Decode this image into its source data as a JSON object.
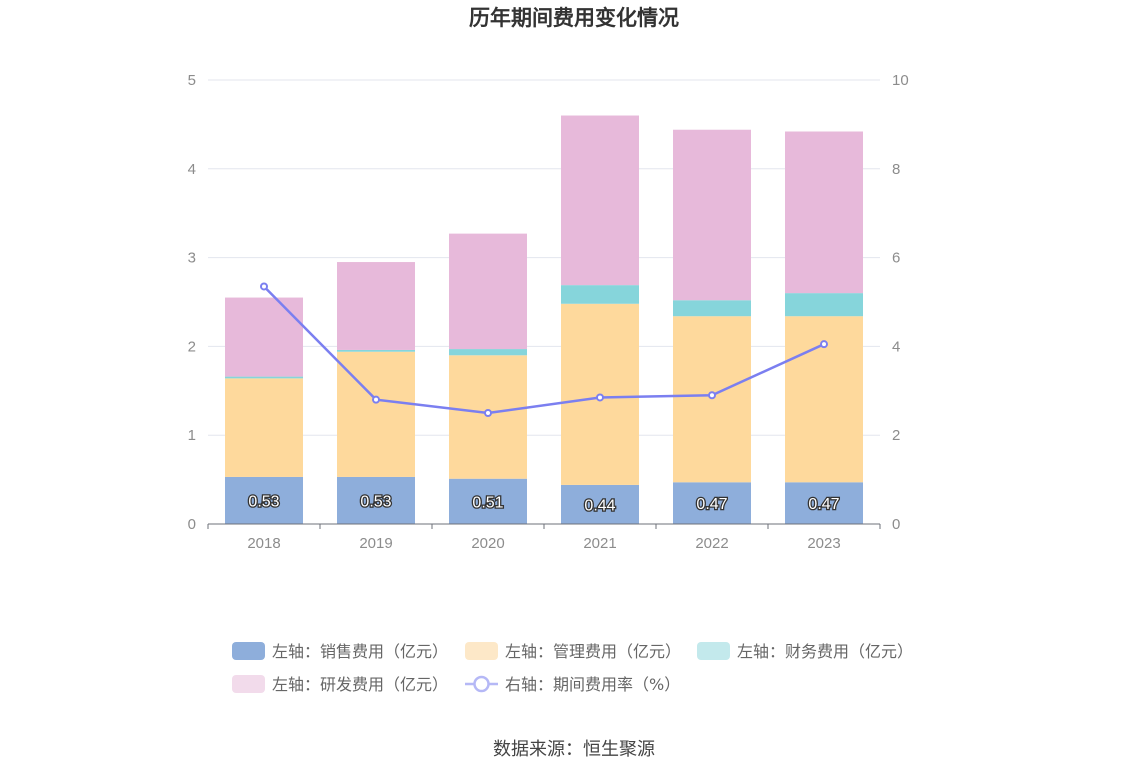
{
  "chart_data": {
    "type": "bar",
    "title": "历年期间费用变化情况",
    "source": "数据来源：恒生聚源",
    "categories": [
      "2018",
      "2019",
      "2020",
      "2021",
      "2022",
      "2023"
    ],
    "stacked": true,
    "ylim": [
      0,
      5
    ],
    "yticks": [
      0,
      1,
      2,
      3,
      4,
      5
    ],
    "y2lim": [
      0,
      10
    ],
    "y2ticks": [
      0,
      2,
      4,
      6,
      8,
      10
    ],
    "grid": true,
    "legend_position": "bottom",
    "series": [
      {
        "name": "左轴：销售费用（亿元）",
        "type": "bar",
        "axis": "left",
        "color": "#8eaedb",
        "legend_color": "#8eaedb",
        "show_labels": true,
        "value_labels": [
          "0.53",
          "0.53",
          "0.51",
          "0.44",
          "0.47",
          "0.47"
        ],
        "values": [
          0.53,
          0.53,
          0.51,
          0.44,
          0.47,
          0.47
        ]
      },
      {
        "name": "左轴：管理费用（亿元）",
        "type": "bar",
        "axis": "left",
        "color": "#fed99c",
        "legend_color": "#fde8c8",
        "show_labels": false,
        "values": [
          1.11,
          1.41,
          1.39,
          2.04,
          1.87,
          1.87
        ]
      },
      {
        "name": "左轴：财务费用（亿元）",
        "type": "bar",
        "axis": "left",
        "color": "#86d5db",
        "legend_color": "#c3e9ec",
        "show_labels": false,
        "values": [
          0.02,
          0.02,
          0.07,
          0.21,
          0.18,
          0.26
        ]
      },
      {
        "name": "左轴：研发费用（亿元）",
        "type": "bar",
        "axis": "left",
        "color": "#e7b9da",
        "legend_color": "#f2dbeb",
        "show_labels": false,
        "values": [
          0.89,
          0.99,
          1.3,
          1.91,
          1.92,
          1.82
        ]
      },
      {
        "name": "右轴：期间费用率（%）",
        "type": "line",
        "axis": "right",
        "color": "#7b7ff0",
        "legend_color": "#b5b8f6",
        "show_labels": false,
        "values": [
          5.35,
          2.8,
          2.5,
          2.85,
          2.9,
          4.05
        ]
      }
    ]
  }
}
